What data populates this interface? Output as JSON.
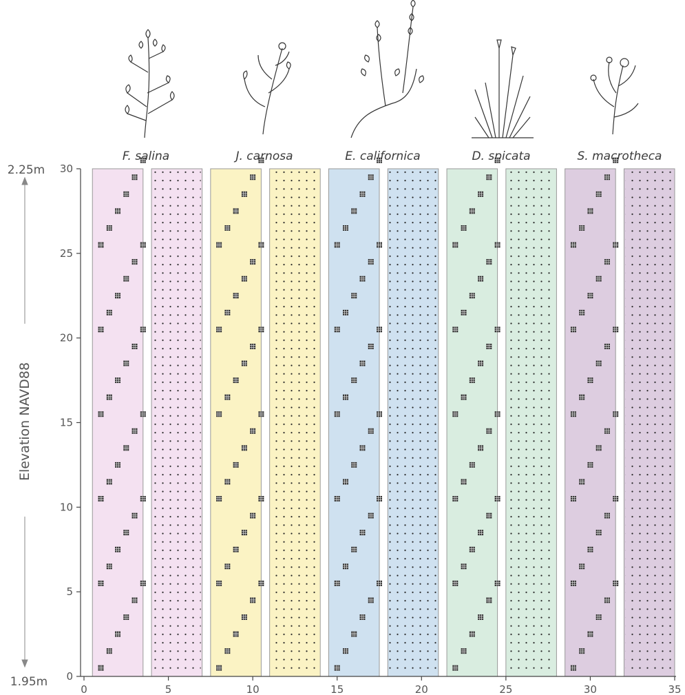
{
  "chart_data": {
    "type": "diagram",
    "axis_title_y": "Elevation NAVD88",
    "elevation_top": "2.25m",
    "elevation_bottom": "1.95m",
    "x_ticks": [
      0,
      5,
      10,
      15,
      20,
      25,
      30,
      35
    ],
    "y_ticks": [
      0,
      5,
      10,
      15,
      20,
      25,
      30
    ],
    "xlim": [
      0,
      35
    ],
    "ylim": [
      0,
      30
    ],
    "species": [
      {
        "name": "F. salina",
        "icon": "shrub-plant-icon",
        "color": "#f4e1f1",
        "plot_start": 0.5,
        "mono_start": 0.5,
        "mix_start": 4.0
      },
      {
        "name": "J. carnosa",
        "icon": "succulent-plant-icon",
        "color": "#fbf3c4",
        "plot_start": 7.5,
        "mono_start": 7.5,
        "mix_start": 11.0
      },
      {
        "name": "E. californica",
        "icon": "flowering-spike-plant-icon",
        "color": "#cfe1f0",
        "plot_start": 14.5,
        "mono_start": 14.5,
        "mix_start": 18.0
      },
      {
        "name": "D. spicata",
        "icon": "grass-plant-icon",
        "color": "#d9ede0",
        "plot_start": 21.5,
        "mono_start": 21.5,
        "mix_start": 25.0
      },
      {
        "name": "S. macrotheca",
        "icon": "composite-flower-plant-icon",
        "color": "#ddcde0",
        "plot_start": 28.5,
        "mono_start": 28.5,
        "mix_start": 32.0
      }
    ],
    "strip_width": 3.0,
    "staircase_offsets_x": [
      0.5,
      1.0,
      1.5,
      2.0,
      2.5,
      3.0
    ],
    "staircase_y_start": [
      0.5,
      5.5,
      10.5,
      15.5,
      20.5,
      25.5
    ]
  }
}
